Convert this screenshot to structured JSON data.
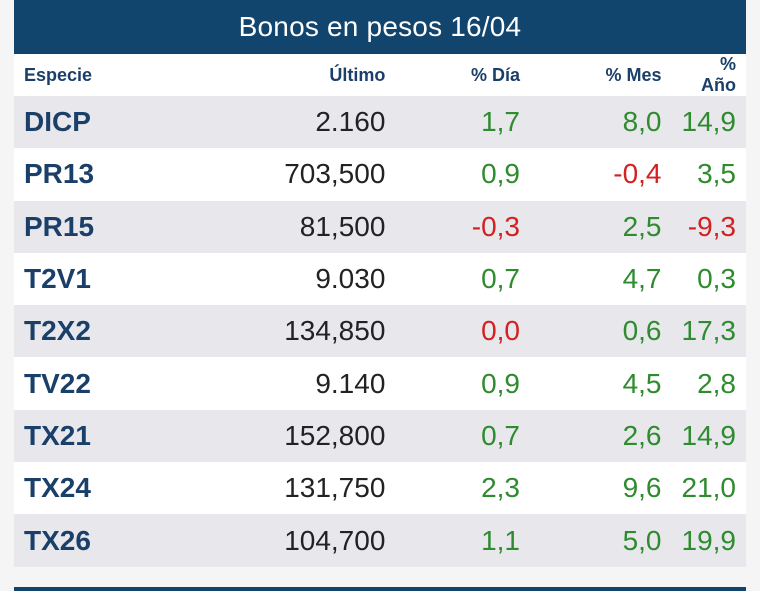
{
  "title": "Bonos en pesos 16/04",
  "headers": {
    "name": "Especie",
    "last": "Último",
    "day": "% Día",
    "month": "% Mes",
    "year": "% Año"
  },
  "rows": [
    {
      "name": "DICP",
      "last": "2.160",
      "day": "1,7",
      "month": "8,0",
      "year": "14,9"
    },
    {
      "name": "PR13",
      "last": "703,500",
      "day": "0,9",
      "month": "-0,4",
      "year": "3,5"
    },
    {
      "name": "PR15",
      "last": "81,500",
      "day": "-0,3",
      "month": "2,5",
      "year": "-9,3"
    },
    {
      "name": "T2V1",
      "last": "9.030",
      "day": "0,7",
      "month": "4,7",
      "year": "0,3"
    },
    {
      "name": "T2X2",
      "last": "134,850",
      "day": "0,0",
      "month": "0,6",
      "year": "17,3"
    },
    {
      "name": "TV22",
      "last": "9.140",
      "day": "0,9",
      "month": "4,5",
      "year": "2,8"
    },
    {
      "name": "TX21",
      "last": "152,800",
      "day": "0,7",
      "month": "2,6",
      "year": "14,9"
    },
    {
      "name": "TX24",
      "last": "131,750",
      "day": "2,3",
      "month": "9,6",
      "year": "21,0"
    },
    {
      "name": "TX26",
      "last": "104,700",
      "day": "1,1",
      "month": "5,0",
      "year": "19,9"
    }
  ],
  "colors": {
    "header_bg": "#12456e",
    "positive": "#2e8b2e",
    "negative": "#d32020",
    "ticker": "#1a3f69"
  }
}
